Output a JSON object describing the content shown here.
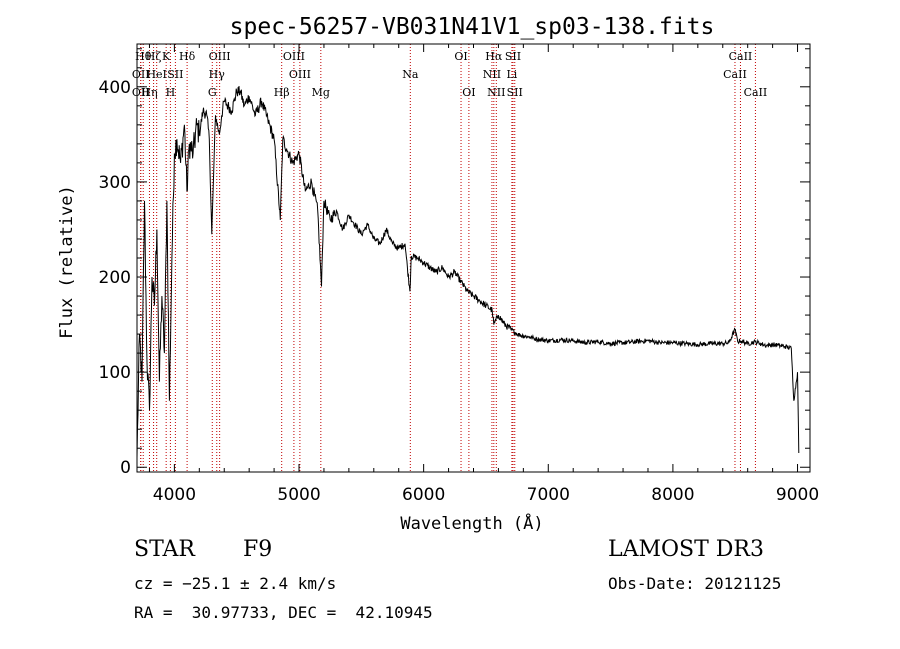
{
  "chart_data": {
    "type": "line",
    "title": "spec-56257-VB031N41V1_sp03-138.fits",
    "xlabel": "Wavelength (Å)",
    "ylabel": "Flux (relative)",
    "xlim": [
      3700,
      9100
    ],
    "ylim": [
      -5,
      445
    ],
    "xticks": [
      4000,
      5000,
      6000,
      7000,
      8000,
      9000
    ],
    "yticks": [
      0,
      100,
      200,
      300,
      400
    ],
    "series": [
      {
        "name": "flux",
        "x": [
          3700,
          3720,
          3740,
          3760,
          3780,
          3800,
          3820,
          3840,
          3860,
          3880,
          3900,
          3920,
          3940,
          3960,
          3980,
          4000,
          4020,
          4050,
          4080,
          4100,
          4120,
          4150,
          4180,
          4200,
          4230,
          4260,
          4280,
          4300,
          4330,
          4360,
          4380,
          4400,
          4430,
          4460,
          4500,
          4530,
          4560,
          4600,
          4650,
          4700,
          4750,
          4800,
          4850,
          4870,
          4900,
          4950,
          5000,
          5050,
          5100,
          5150,
          5180,
          5200,
          5250,
          5300,
          5350,
          5400,
          5450,
          5500,
          5550,
          5600,
          5650,
          5700,
          5750,
          5800,
          5850,
          5890,
          5900,
          5950,
          6000,
          6050,
          6100,
          6150,
          6200,
          6250,
          6300,
          6350,
          6400,
          6450,
          6500,
          6550,
          6563,
          6600,
          6650,
          6700,
          6750,
          6800,
          6850,
          6900,
          7000,
          7100,
          7200,
          7300,
          7400,
          7500,
          7600,
          7700,
          7800,
          7900,
          8000,
          8100,
          8200,
          8300,
          8400,
          8450,
          8498,
          8520,
          8542,
          8580,
          8600,
          8662,
          8700,
          8750,
          8800,
          8850,
          8900,
          8950,
          8970,
          9000,
          9010
        ],
        "y": [
          10,
          140,
          90,
          280,
          110,
          60,
          200,
          170,
          250,
          90,
          180,
          120,
          280,
          70,
          220,
          330,
          345,
          320,
          360,
          290,
          340,
          330,
          360,
          350,
          375,
          370,
          345,
          245,
          370,
          350,
          370,
          385,
          380,
          375,
          395,
          395,
          380,
          390,
          370,
          385,
          365,
          345,
          260,
          345,
          335,
          320,
          330,
          290,
          300,
          270,
          190,
          280,
          260,
          270,
          250,
          265,
          255,
          245,
          255,
          240,
          235,
          250,
          235,
          230,
          235,
          185,
          222,
          220,
          215,
          210,
          205,
          210,
          200,
          205,
          195,
          185,
          180,
          175,
          170,
          165,
          150,
          160,
          150,
          145,
          140,
          138,
          137,
          135,
          133,
          134,
          133,
          131,
          132,
          130,
          131,
          132,
          133,
          131,
          131,
          130,
          129,
          130,
          130,
          131,
          145,
          132,
          133,
          131,
          130,
          132,
          130,
          128,
          129,
          128,
          127,
          125,
          70,
          100,
          15
        ]
      }
    ],
    "lines": [
      {
        "x": 3750,
        "label": "Hθ",
        "row": 0
      },
      {
        "x": 3730,
        "label": "OII",
        "row": 1
      },
      {
        "x": 3730,
        "label": "OII",
        "row": 2
      },
      {
        "x": 3800,
        "label": "Hη",
        "row": 2
      },
      {
        "x": 3833,
        "label": "Hζ",
        "row": 0
      },
      {
        "x": 3858,
        "label": "HeI",
        "row": 1
      },
      {
        "x": 3934,
        "label": "K",
        "row": 0
      },
      {
        "x": 3968,
        "label": "H",
        "row": 2
      },
      {
        "x": 4008,
        "label": "SII",
        "row": 1
      },
      {
        "x": 4102,
        "label": "Hδ",
        "row": 0
      },
      {
        "x": 4304,
        "label": "G",
        "row": 2
      },
      {
        "x": 4340,
        "label": "Hγ",
        "row": 1
      },
      {
        "x": 4363,
        "label": "OIII",
        "row": 0
      },
      {
        "x": 4861,
        "label": "Hβ",
        "row": 2
      },
      {
        "x": 4959,
        "label": "OIII",
        "row": 0
      },
      {
        "x": 5007,
        "label": "OIII",
        "row": 1
      },
      {
        "x": 5175,
        "label": "Mg",
        "row": 2
      },
      {
        "x": 5893,
        "label": "Na",
        "row": 1
      },
      {
        "x": 6300,
        "label": "OI",
        "row": 0
      },
      {
        "x": 6363,
        "label": "OI",
        "row": 2
      },
      {
        "x": 6548,
        "label": "NII",
        "row": 1
      },
      {
        "x": 6563,
        "label": "Hα",
        "row": 0
      },
      {
        "x": 6583,
        "label": "NII",
        "row": 2
      },
      {
        "x": 6708,
        "label": "Li",
        "row": 1
      },
      {
        "x": 6717,
        "label": "SII",
        "row": 0
      },
      {
        "x": 6731,
        "label": "SII",
        "row": 2
      },
      {
        "x": 8498,
        "label": "CaII",
        "row": 1
      },
      {
        "x": 8542,
        "label": "CaII",
        "row": 0
      },
      {
        "x": 8662,
        "label": "CaII",
        "row": 2
      }
    ]
  },
  "info": {
    "class": "STAR",
    "subclass": "F9",
    "survey": "LAMOST DR3",
    "cz": "cz = −25.1 ± 2.4 km/s",
    "obs_date": "Obs-Date: 20121125",
    "coords": "RA =  30.97733, DEC =  42.10945"
  }
}
